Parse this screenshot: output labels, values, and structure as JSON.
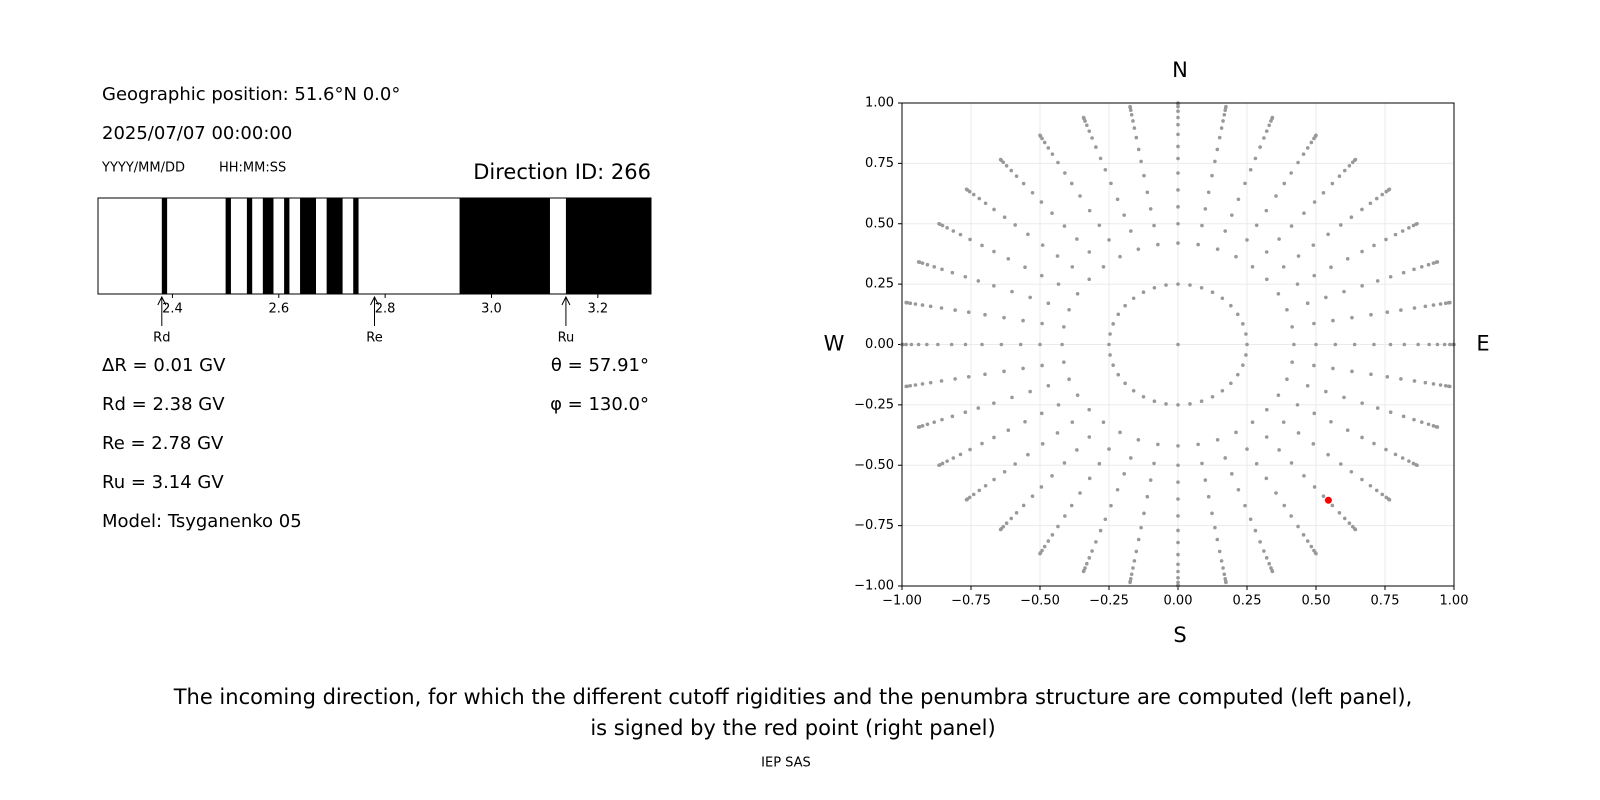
{
  "info": {
    "position": "Geographic position: 51.6°N 0.0°",
    "datetime": "2025/07/07 00:00:00",
    "date_format": "YYYY/MM/DD",
    "time_format": "HH:MM:SS",
    "direction": "Direction ID: 266",
    "parameters": [
      "ΔR = 0.01 GV",
      "Rd = 2.38 GV",
      "Re = 2.78 GV",
      "Ru = 3.14 GV",
      "Model: Tsyganenko 05"
    ],
    "angles": [
      "θ = 57.91°",
      "φ = 130.0°"
    ]
  },
  "caption": [
    "The incoming direction, for which the different cutoff rigidities and the penumbra structure are computed (left panel),",
    "is signed by the red point (right panel)"
  ],
  "credit": "IEP SAS",
  "chart_data": [
    {
      "type": "penumbra",
      "xlim": [
        2.26,
        3.3
      ],
      "xticks": [
        2.4,
        2.6,
        2.8,
        {
          "value": 3,
          "label": "3.0"
        },
        3.2
      ],
      "color": "#000000",
      "bands": [
        [
          2.38,
          2.39
        ],
        [
          2.5,
          2.51
        ],
        [
          2.54,
          2.55
        ],
        [
          2.57,
          2.59
        ],
        [
          2.61,
          2.62
        ],
        [
          2.64,
          2.67
        ],
        [
          2.69,
          2.72
        ],
        [
          2.74,
          2.75
        ],
        [
          2.94,
          3.11
        ],
        [
          3.14,
          3.3
        ]
      ],
      "markers": [
        {
          "label": "Rd",
          "value": 2.38
        },
        {
          "label": "Re",
          "value": 2.78
        },
        {
          "label": "Ru",
          "value": 3.14
        }
      ]
    },
    {
      "type": "scatter",
      "xlim": [
        -1,
        1
      ],
      "ylim": [
        -1,
        1
      ],
      "grid": true,
      "xticks": [
        {
          "value": -1,
          "label": "−1.00"
        },
        {
          "value": -0.75,
          "label": "−0.75"
        },
        {
          "value": -0.5,
          "label": "−0.50"
        },
        {
          "value": -0.25,
          "label": "−0.25"
        },
        {
          "value": 0,
          "label": "0.00"
        },
        0.25,
        {
          "value": 0.5,
          "label": "0.50"
        },
        0.75,
        {
          "value": 1,
          "label": "1.00"
        }
      ],
      "yticks": [
        {
          "value": -1,
          "label": "−1.00"
        },
        {
          "value": -0.75,
          "label": "−0.75"
        },
        {
          "value": -0.5,
          "label": "−0.50"
        },
        {
          "value": -0.25,
          "label": "−0.25"
        },
        {
          "value": 0,
          "label": "0.00"
        },
        0.25,
        {
          "value": 0.5,
          "label": "0.50"
        },
        0.75,
        {
          "value": 1,
          "label": "1.00"
        }
      ],
      "color": "#999999",
      "radii": [
        0,
        0.25,
        0.42,
        0.5,
        0.57,
        0.64,
        0.71,
        0.77,
        0.82,
        0.87,
        0.91,
        0.94,
        0.966,
        0.985,
        0.996,
        1.0
      ],
      "azimuths": [
        0,
        10,
        20,
        30,
        40,
        50,
        60,
        70,
        80,
        90,
        100,
        110,
        120,
        130,
        140,
        150,
        160,
        170,
        180,
        190,
        200,
        210,
        220,
        230,
        240,
        250,
        260,
        270,
        280,
        290,
        300,
        310,
        320,
        330,
        340,
        350
      ],
      "highlight": {
        "x": 0.545,
        "y": -0.645,
        "color": "#ff0000"
      },
      "directions": {
        "top": "N",
        "bottom": "S",
        "left": "W",
        "right": "E"
      }
    }
  ]
}
